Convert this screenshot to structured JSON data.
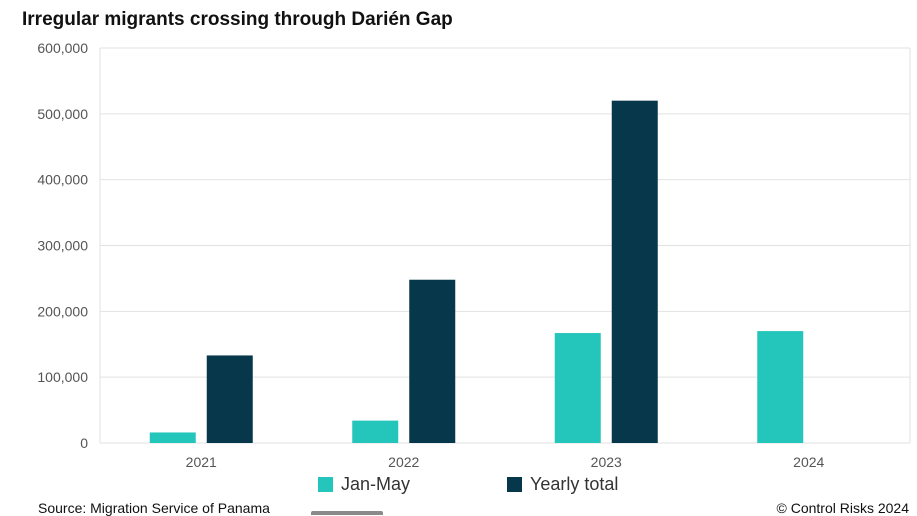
{
  "title": "Irregular migrants crossing through Darién Gap",
  "source": "Source: Migration Service of Panama",
  "copyright": "© Control Risks 2024",
  "colors": {
    "jan_may": "#24c5bb",
    "yearly_total": "#06374a",
    "grid": "#e2e2e2",
    "axis_text": "#555555"
  },
  "chart_data": {
    "type": "bar",
    "title": "Irregular migrants crossing through Darién Gap",
    "categories": [
      "2021",
      "2022",
      "2023",
      "2024"
    ],
    "series": [
      {
        "name": "Jan-May",
        "values": [
          16000,
          34000,
          167000,
          170000
        ]
      },
      {
        "name": "Yearly total",
        "values": [
          133000,
          248000,
          520000,
          null
        ]
      }
    ],
    "ylim": [
      0,
      600000
    ],
    "yticks": [
      0,
      100000,
      200000,
      300000,
      400000,
      500000,
      600000
    ],
    "ytick_labels": [
      "0",
      "100,000",
      "200,000",
      "300,000",
      "400,000",
      "500,000",
      "600,000"
    ],
    "xlabel": "",
    "ylabel": "",
    "grid": true,
    "legend": "bottom"
  }
}
